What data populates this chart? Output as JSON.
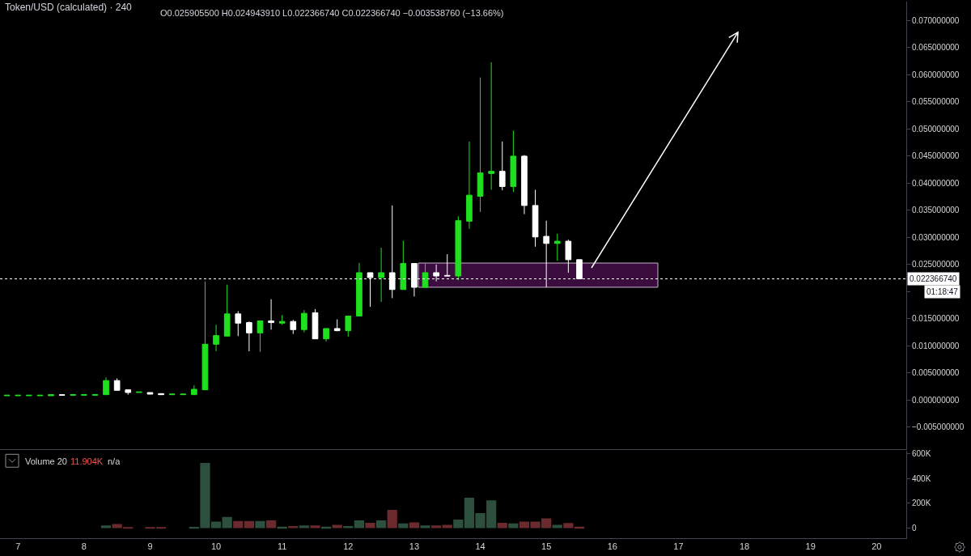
{
  "chart_data": [
    {
      "type": "candlestick",
      "title": "Token/USD (calculated) · 240",
      "subtitle": "O0.025905500 H0.024943910 L0.022366740 C0.022366740 −0.003538760 (−13.66%)",
      "x": [
        6.8333,
        7,
        7.1667,
        7.3333,
        7.5,
        7.6667,
        7.8333,
        8,
        8.1667,
        8.3333,
        8.5,
        8.6667,
        8.8333,
        9,
        9.1667,
        9.3333,
        9.5,
        9.6667,
        9.8333,
        10,
        10.1667,
        10.3333,
        10.5,
        10.6667,
        10.8333,
        11,
        11.1667,
        11.3333,
        11.5,
        11.6667,
        11.8333,
        12,
        12.1667,
        12.3333,
        12.5,
        12.6667,
        12.8333,
        13,
        13.1667,
        13.3333,
        13.5,
        13.6667,
        13.8333,
        14,
        14.1667,
        14.3333,
        14.5,
        14.6667,
        14.8333,
        15,
        15.1667,
        15.3333,
        15.5
      ],
      "ohlc": [
        [
          0.0008,
          0.0009,
          0.0008,
          0.0009
        ],
        [
          0.0008,
          0.0009,
          0.0008,
          0.0009
        ],
        [
          0.0008,
          0.0009,
          0.0008,
          0.0009
        ],
        [
          0.0008,
          0.0009,
          0.0008,
          0.0009
        ],
        [
          0.0008,
          0.001,
          0.0008,
          0.001
        ],
        [
          0.001,
          0.001,
          0.0009,
          0.0009
        ],
        [
          0.0009,
          0.001,
          0.0009,
          0.001
        ],
        [
          0.0009,
          0.001,
          0.0009,
          0.001
        ],
        [
          0.0009,
          0.001,
          0.0009,
          0.001
        ],
        [
          0.001,
          0.0042,
          0.001,
          0.0036
        ],
        [
          0.0036,
          0.004,
          0.0018,
          0.0018
        ],
        [
          0.0019,
          0.0019,
          0.001,
          0.0014
        ],
        [
          0.0014,
          0.0015,
          0.0014,
          0.0015
        ],
        [
          0.0014,
          0.0014,
          0.0011,
          0.0011
        ],
        [
          0.0012,
          0.0012,
          0.001,
          0.001
        ],
        [
          0.001,
          0.0011,
          0.001,
          0.0011
        ],
        [
          0.001,
          0.0011,
          0.001,
          0.0011
        ],
        [
          0.001,
          0.0027,
          0.001,
          0.002
        ],
        [
          0.0019,
          0.0219,
          0.0019,
          0.0103
        ],
        [
          0.0103,
          0.0139,
          0.009,
          0.0119
        ],
        [
          0.0118,
          0.0213,
          0.0118,
          0.0159
        ],
        [
          0.0159,
          0.0164,
          0.0118,
          0.0142
        ],
        [
          0.0143,
          0.0145,
          0.009,
          0.0124
        ],
        [
          0.0124,
          0.0146,
          0.0089,
          0.0146
        ],
        [
          0.0146,
          0.0186,
          0.013,
          0.0143
        ],
        [
          0.0142,
          0.0157,
          0.0139,
          0.0145
        ],
        [
          0.0145,
          0.0148,
          0.0122,
          0.013
        ],
        [
          0.013,
          0.0166,
          0.0125,
          0.016
        ],
        [
          0.0161,
          0.0168,
          0.0113,
          0.0113
        ],
        [
          0.0113,
          0.0132,
          0.0108,
          0.0132
        ],
        [
          0.0132,
          0.0149,
          0.0127,
          0.0128
        ],
        [
          0.0128,
          0.0155,
          0.0117,
          0.0155
        ],
        [
          0.0155,
          0.0253,
          0.0155,
          0.0235
        ],
        [
          0.0235,
          0.0235,
          0.0172,
          0.0226
        ],
        [
          0.0226,
          0.0281,
          0.0181,
          0.0235
        ],
        [
          0.0235,
          0.0359,
          0.0188,
          0.0204
        ],
        [
          0.0204,
          0.0294,
          0.0204,
          0.0252
        ],
        [
          0.0252,
          0.0252,
          0.0191,
          0.0208
        ],
        [
          0.0208,
          0.0252,
          0.0208,
          0.0235
        ],
        [
          0.0235,
          0.025,
          0.0219,
          0.0229
        ],
        [
          0.023,
          0.0269,
          0.0229,
          0.0229
        ],
        [
          0.0229,
          0.0339,
          0.0221,
          0.0331
        ],
        [
          0.033,
          0.0477,
          0.0316,
          0.0378
        ],
        [
          0.0376,
          0.0595,
          0.0347,
          0.0419
        ],
        [
          0.0418,
          0.0623,
          0.0388,
          0.0422
        ],
        [
          0.0422,
          0.0477,
          0.0387,
          0.0394
        ],
        [
          0.0394,
          0.0497,
          0.0384,
          0.045
        ],
        [
          0.045,
          0.0452,
          0.0343,
          0.0359
        ],
        [
          0.0359,
          0.0388,
          0.0283,
          0.0301
        ],
        [
          0.0302,
          0.0331,
          0.0208,
          0.0289
        ],
        [
          0.0289,
          0.0307,
          0.0257,
          0.0293
        ],
        [
          0.0293,
          0.0296,
          0.0235,
          0.0259
        ],
        [
          0.0259055,
          0.0259055,
          0.02236674,
          0.02236674
        ]
      ],
      "colors": [
        "#1fe01f",
        "#1fe01f",
        "#1fe01f",
        "#1fe01f",
        "#1fe01f",
        "#ffffff",
        "#1fe01f",
        "#1fe01f",
        "#1fe01f",
        "#1fe01f",
        "#ffffff",
        "#ffffff",
        "#1fe01f",
        "#ffffff",
        "#ffffff",
        "#1fe01f",
        "#1fe01f",
        "#1fe01f",
        "#1fe01f",
        "#1fe01f",
        "#1fe01f",
        "#ffffff",
        "#ffffff",
        "#1fe01f",
        "#ffffff",
        "#1fe01f",
        "#ffffff",
        "#1fe01f",
        "#ffffff",
        "#1fe01f",
        "#ffffff",
        "#1fe01f",
        "#1fe01f",
        "#ffffff",
        "#1fe01f",
        "#ffffff",
        "#1fe01f",
        "#ffffff",
        "#1fe01f",
        "#ffffff",
        "#ffffff",
        "#1fe01f",
        "#1fe01f",
        "#1fe01f",
        "#1fe01f",
        "#ffffff",
        "#1fe01f",
        "#ffffff",
        "#ffffff",
        "#ffffff",
        "#1fe01f",
        "#ffffff",
        "#ffffff"
      ],
      "ref_lines": [
        {
          "axis": "y",
          "value": 0.02236674,
          "label": "0.022366740",
          "color": "#ffffff",
          "line_style": "dotted"
        }
      ],
      "annotations": [
        "01:18:47"
      ],
      "xlim": [
        6.728,
        20.45
      ],
      "xticks": [
        7,
        8,
        9,
        10,
        11,
        12,
        13,
        14,
        15,
        16,
        17,
        18,
        19,
        20
      ],
      "ylim": [
        -0.0091,
        0.0735
      ],
      "yticks": [
        {
          "value": -0.005,
          "label": "−0.005000000"
        },
        {
          "value": 0,
          "label": "0.000000000"
        },
        {
          "value": 0.005,
          "label": "0.005000000"
        },
        {
          "value": 0.01,
          "label": "0.010000000"
        },
        {
          "value": 0.015,
          "label": "0.015000000"
        },
        {
          "value": 0.02,
          "label": null
        },
        {
          "value": 0.025,
          "label": "0.025000000"
        },
        {
          "value": 0.03,
          "label": "0.030000000"
        },
        {
          "value": 0.035,
          "label": "0.035000000"
        },
        {
          "value": 0.04,
          "label": "0.040000000"
        },
        {
          "value": 0.045,
          "label": "0.045000000"
        },
        {
          "value": 0.05,
          "label": "0.050000000"
        },
        {
          "value": 0.055,
          "label": "0.055000000"
        },
        {
          "value": 0.06,
          "label": "0.060000000"
        },
        {
          "value": 0.065,
          "label": "0.065000000"
        },
        {
          "value": 0.07,
          "label": "0.070000000"
        }
      ],
      "tick_labels": "y"
    },
    {
      "type": "bar",
      "title": "Volume 20",
      "annotations": [
        "11.904K",
        "n/a"
      ],
      "x": [
        8.3333,
        8.5,
        8.6667,
        8.8333,
        9,
        9.1667,
        9.3333,
        9.5,
        9.6667,
        9.8333,
        10,
        10.1667,
        10.3333,
        10.5,
        10.6667,
        10.8333,
        11,
        11.1667,
        11.3333,
        11.5,
        11.6667,
        11.8333,
        12,
        12.1667,
        12.3333,
        12.5,
        12.6667,
        12.8333,
        13,
        13.1667,
        13.3333,
        13.5,
        13.6667,
        13.8333,
        14,
        14.1667,
        14.3333,
        14.5,
        14.6667,
        14.8333,
        15,
        15.1667,
        15.3333,
        15.5
      ],
      "values": [
        22000,
        33000,
        2000,
        null,
        2000,
        2000,
        null,
        null,
        10000,
        525000,
        52000,
        90000,
        57000,
        57000,
        57000,
        62000,
        11000,
        16000,
        22000,
        22000,
        11000,
        27000,
        16000,
        62000,
        43000,
        62000,
        147000,
        38000,
        46000,
        22000,
        22000,
        27000,
        68000,
        245000,
        120000,
        223000,
        43000,
        38000,
        52000,
        52000,
        79000,
        27000,
        41000,
        11904
      ],
      "colors": [
        "#2c4f3e",
        "#6b2a2e",
        "#6b2a2e",
        "#2c4f3e",
        "#6b2a2e",
        "#6b2a2e",
        "#2c4f3e",
        "#2c4f3e",
        "#2c4f3e",
        "#2c4f3e",
        "#2c4f3e",
        "#2c4f3e",
        "#6b2a2e",
        "#6b2a2e",
        "#2c4f3e",
        "#6b2a2e",
        "#2c4f3e",
        "#6b2a2e",
        "#2c4f3e",
        "#6b2a2e",
        "#2c4f3e",
        "#6b2a2e",
        "#2c4f3e",
        "#2c4f3e",
        "#6b2a2e",
        "#2c4f3e",
        "#6b2a2e",
        "#2c4f3e",
        "#6b2a2e",
        "#2c4f3e",
        "#6b2a2e",
        "#6b2a2e",
        "#2c4f3e",
        "#2c4f3e",
        "#2c4f3e",
        "#2c4f3e",
        "#6b2a2e",
        "#2c4f3e",
        "#6b2a2e",
        "#6b2a2e",
        "#6b2a2e",
        "#2c4f3e",
        "#6b2a2e",
        "#6b2a2e"
      ],
      "xlim": [
        6.728,
        20.45
      ],
      "xticks": [
        7,
        8,
        9,
        10,
        11,
        12,
        13,
        14,
        15,
        16,
        17,
        18,
        19,
        20
      ],
      "ylim": [
        -81000,
        620000
      ],
      "yticks": [
        0,
        {
          "value": 200000,
          "label": "200K"
        },
        {
          "value": 400000,
          "label": "400K"
        },
        {
          "value": 600000,
          "label": "600K"
        }
      ]
    }
  ]
}
